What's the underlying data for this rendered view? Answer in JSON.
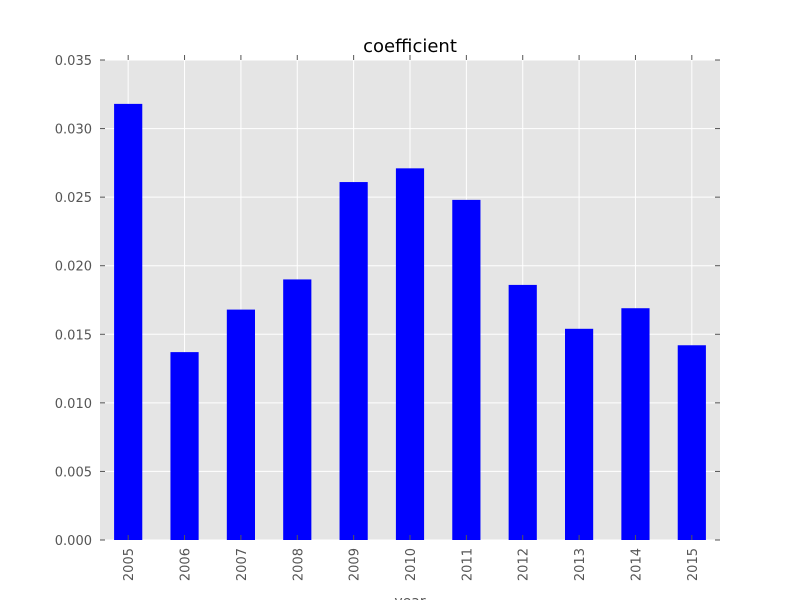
{
  "chart_data": {
    "type": "bar",
    "title": "coefficient",
    "xlabel": "year",
    "ylabel": "",
    "categories": [
      "2005",
      "2006",
      "2007",
      "2008",
      "2009",
      "2010",
      "2011",
      "2012",
      "2013",
      "2014",
      "2015"
    ],
    "values": [
      0.0318,
      0.0137,
      0.0168,
      0.019,
      0.0261,
      0.0271,
      0.0248,
      0.0186,
      0.0154,
      0.0169,
      0.0142
    ],
    "ylim": [
      0,
      0.035
    ],
    "yticks": [
      "0.000",
      "0.005",
      "0.010",
      "0.015",
      "0.020",
      "0.025",
      "0.030",
      "0.035"
    ],
    "grid": true,
    "legend": "none"
  },
  "colors": {
    "bar": "#0000ff",
    "plot_background": "#e5e5e5",
    "grid": "#ffffff",
    "tick_text": "#555555"
  }
}
